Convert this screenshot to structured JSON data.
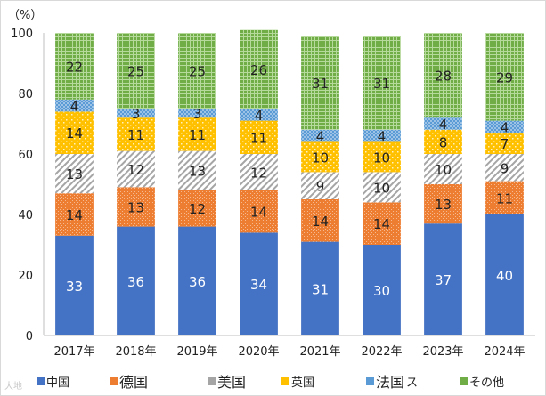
{
  "chart_data": {
    "type": "bar",
    "stacked": true,
    "ylabel": "（%）",
    "ylim": [
      0,
      100
    ],
    "yticks": [
      "0",
      "20",
      "40",
      "60",
      "80",
      "100"
    ],
    "categories": [
      "2017年",
      "2018年",
      "2019年",
      "2020年",
      "2021年",
      "2022年",
      "2023年",
      "2024年"
    ],
    "series": [
      {
        "name": "中国",
        "color": "#4472c4",
        "pattern": "solid",
        "values": [
          33,
          36,
          36,
          34,
          31,
          30,
          37,
          40
        ]
      },
      {
        "name": "德国",
        "color": "#ed7d31",
        "pattern": "dots",
        "values": [
          14,
          13,
          12,
          14,
          14,
          14,
          13,
          11
        ]
      },
      {
        "name": "美国",
        "color": "#a5a5a5",
        "pattern": "diagonal",
        "values": [
          13,
          12,
          13,
          12,
          9,
          10,
          10,
          9
        ]
      },
      {
        "name": "英国",
        "color": "#ffc000",
        "pattern": "confetti",
        "values": [
          14,
          11,
          11,
          11,
          10,
          10,
          8,
          7
        ]
      },
      {
        "name": "法国",
        "color": "#5b9bd5",
        "pattern": "checker",
        "values": [
          4,
          3,
          3,
          4,
          4,
          4,
          4,
          4
        ]
      },
      {
        "name": "その他",
        "color": "#70ad47",
        "pattern": "grid",
        "values": [
          22,
          25,
          25,
          26,
          31,
          31,
          28,
          29
        ]
      }
    ]
  },
  "legend_text_extra": "ス",
  "watermark": "大地"
}
